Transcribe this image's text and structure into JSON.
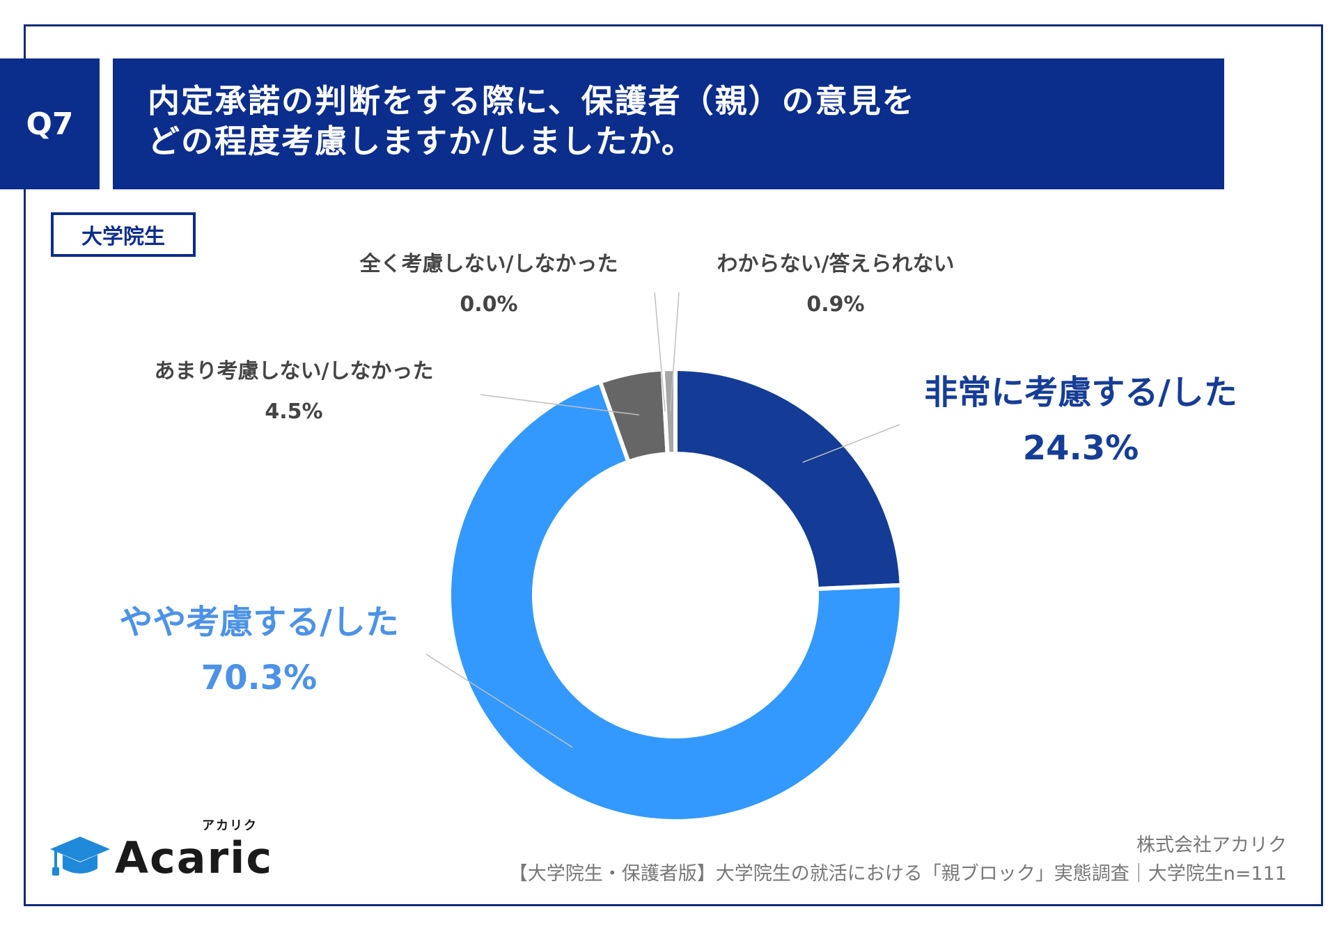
{
  "header": {
    "q_number": "Q7",
    "title_line1": "内定承諾の判断をする際に、保護者（親）の意見を",
    "title_line2": "どの程度考慮しますか/しましたか。"
  },
  "tag": {
    "label": "大学院生"
  },
  "chart_data": {
    "type": "pie",
    "donut": true,
    "slices": [
      {
        "name": "非常に考慮する/した",
        "value": 24.3,
        "label": "24.3%",
        "color": "#143c96"
      },
      {
        "name": "やや考慮する/した",
        "value": 70.3,
        "label": "70.3%",
        "color": "#3399ff"
      },
      {
        "name": "あまり考慮しない/しなかった",
        "value": 4.5,
        "label": "4.5%",
        "color": "#666666"
      },
      {
        "name": "全く考慮しない/しなかった",
        "value": 0.0,
        "label": "0.0%",
        "color": "#333333"
      },
      {
        "name": "わからない/答えられない",
        "value": 0.9,
        "label": "0.9%",
        "color": "#a6a6a6"
      }
    ]
  },
  "logo": {
    "name": "Acaric",
    "kana": "アカリク"
  },
  "footer": {
    "company": "株式会社アカリク",
    "source": "【大学院生・保護者版】大学院生の就活における「親ブロック」実態調査｜大学院生n=111"
  },
  "colors": {
    "navy": "#0b2d8c",
    "frame": "#0f2a78"
  }
}
